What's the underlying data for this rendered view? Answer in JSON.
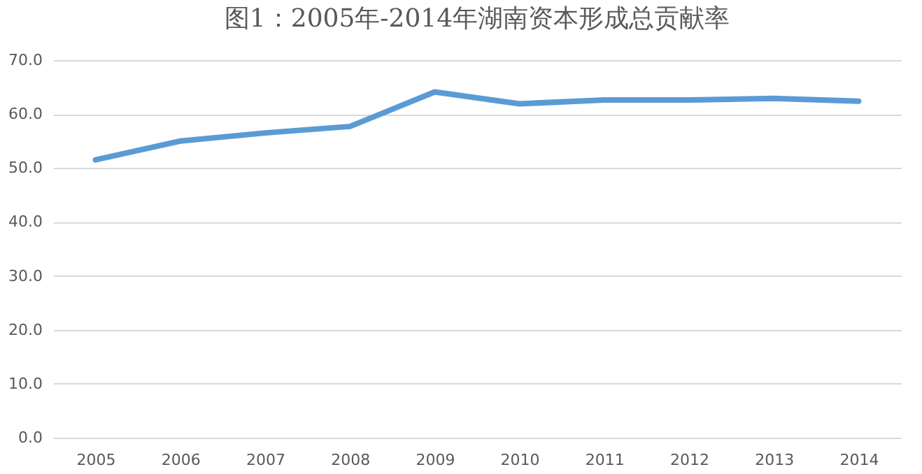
{
  "chart_data": {
    "type": "line",
    "title": "图1：2005年-2014年湖南资本形成总贡献率",
    "categories": [
      "2005",
      "2006",
      "2007",
      "2008",
      "2009",
      "2010",
      "2011",
      "2012",
      "2013",
      "2014"
    ],
    "series": [
      {
        "color": "#5b9bd5",
        "values": [
          51.5,
          55.0,
          56.5,
          57.7,
          64.1,
          61.9,
          62.6,
          62.6,
          62.9,
          62.4
        ]
      }
    ],
    "ylim": [
      0,
      70
    ],
    "yticks": [
      {
        "value": 0,
        "label": "0.0"
      },
      {
        "value": 10,
        "label": "10.0"
      },
      {
        "value": 20,
        "label": "20.0"
      },
      {
        "value": 30,
        "label": "30.0"
      },
      {
        "value": 40,
        "label": "40.0"
      },
      {
        "value": 50,
        "label": "50.0"
      },
      {
        "value": 60,
        "label": "60.0"
      },
      {
        "value": 70,
        "label": "70.0"
      }
    ],
    "grid": "y",
    "marker": "none",
    "line_style": "solid"
  }
}
